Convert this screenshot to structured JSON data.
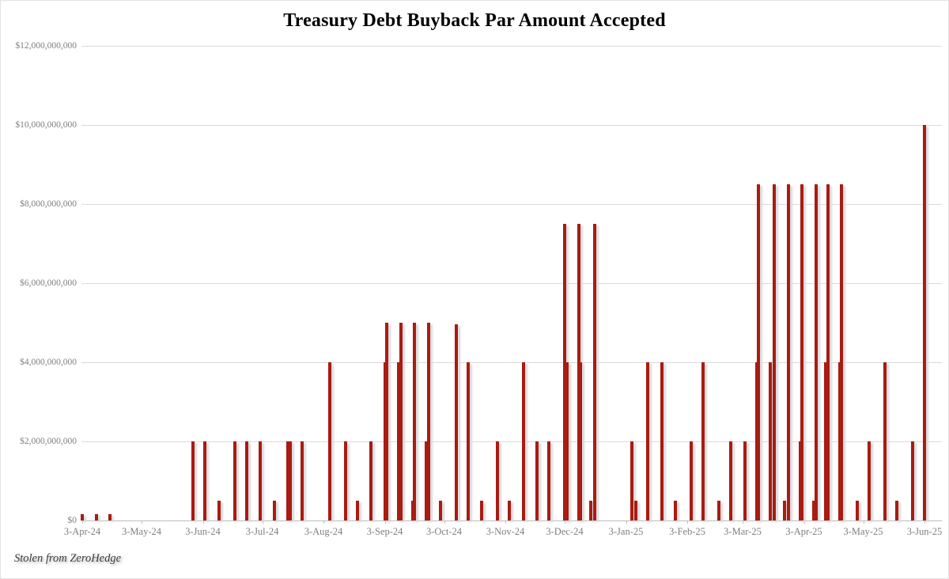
{
  "title": "Treasury Debt Buyback Par Amount Accepted",
  "watermark": "Stolen from ZeroHedge",
  "colors": {
    "bar": "#a81c12",
    "bar_shadow": "#d9d9dc",
    "gridline": "#dadada",
    "axis_line": "#bdbdbd",
    "axis_text": "#7f7f7f",
    "title_text": "#000000",
    "background": "#ffffff"
  },
  "chart_data": {
    "type": "bar",
    "title": "Treasury Debt Buyback Par Amount Accepted",
    "xlabel": "",
    "ylabel": "",
    "ylim": [
      0,
      12000000000
    ],
    "grid": "horizontal",
    "legend": "none",
    "y_ticks": [
      "$0",
      "$2,000,000,000",
      "$4,000,000,000",
      "$6,000,000,000",
      "$8,000,000,000",
      "$10,000,000,000",
      "$12,000,000,000"
    ],
    "x_ticks": [
      {
        "label": "3-Apr-24",
        "day": 0
      },
      {
        "label": "3-May-24",
        "day": 30
      },
      {
        "label": "3-Jun-24",
        "day": 61
      },
      {
        "label": "3-Jul-24",
        "day": 91
      },
      {
        "label": "3-Aug-24",
        "day": 122
      },
      {
        "label": "3-Sep-24",
        "day": 153
      },
      {
        "label": "3-Oct-24",
        "day": 183
      },
      {
        "label": "3-Nov-24",
        "day": 214
      },
      {
        "label": "3-Dec-24",
        "day": 244
      },
      {
        "label": "3-Jan-25",
        "day": 275
      },
      {
        "label": "3-Feb-25",
        "day": 306
      },
      {
        "label": "3-Mar-25",
        "day": 334
      },
      {
        "label": "3-Apr-25",
        "day": 365
      },
      {
        "label": "3-May-25",
        "day": 395
      },
      {
        "label": "3-Jun-25",
        "day": 426
      }
    ],
    "points": [
      {
        "date": "3-Apr-24",
        "day": 0,
        "value": 150000000
      },
      {
        "date": "10-Apr-24",
        "day": 7,
        "value": 150000000
      },
      {
        "date": "17-Apr-24",
        "day": 14,
        "value": 150000000
      },
      {
        "date": "29-May-24",
        "day": 56,
        "value": 2000000000
      },
      {
        "date": "4-Jun-24",
        "day": 62,
        "value": 2000000000
      },
      {
        "date": "11-Jun-24",
        "day": 69,
        "value": 500000000
      },
      {
        "date": "19-Jun-24",
        "day": 77,
        "value": 2000000000
      },
      {
        "date": "25-Jun-24",
        "day": 83,
        "value": 2000000000
      },
      {
        "date": "2-Jul-24",
        "day": 90,
        "value": 2000000000
      },
      {
        "date": "9-Jul-24",
        "day": 97,
        "value": 500000000
      },
      {
        "date": "16-Jul-24",
        "day": 104,
        "value": 2000000000
      },
      {
        "date": "17-Jul-24",
        "day": 105,
        "value": 2000000000
      },
      {
        "date": "23-Jul-24",
        "day": 111,
        "value": 2000000000
      },
      {
        "date": "6-Aug-24",
        "day": 125,
        "value": 4000000000
      },
      {
        "date": "14-Aug-24",
        "day": 133,
        "value": 2000000000
      },
      {
        "date": "20-Aug-24",
        "day": 139,
        "value": 500000000
      },
      {
        "date": "27-Aug-24",
        "day": 146,
        "value": 2000000000
      },
      {
        "date": "3-Sep-24",
        "day": 153,
        "value": 4000000000
      },
      {
        "date": "4-Sep-24",
        "day": 154,
        "value": 5000000000
      },
      {
        "date": "10-Sep-24",
        "day": 160,
        "value": 4000000000
      },
      {
        "date": "11-Sep-24",
        "day": 161,
        "value": 5000000000
      },
      {
        "date": "17-Sep-24",
        "day": 167,
        "value": 500000000
      },
      {
        "date": "18-Sep-24",
        "day": 168,
        "value": 5000000000
      },
      {
        "date": "24-Sep-24",
        "day": 174,
        "value": 2000000000
      },
      {
        "date": "25-Sep-24",
        "day": 175,
        "value": 5000000000
      },
      {
        "date": "1-Oct-24",
        "day": 181,
        "value": 500000000
      },
      {
        "date": "9-Oct-24",
        "day": 189,
        "value": 4950000000
      },
      {
        "date": "15-Oct-24",
        "day": 195,
        "value": 4000000000
      },
      {
        "date": "22-Oct-24",
        "day": 202,
        "value": 500000000
      },
      {
        "date": "30-Oct-24",
        "day": 210,
        "value": 2000000000
      },
      {
        "date": "5-Nov-24",
        "day": 216,
        "value": 500000000
      },
      {
        "date": "12-Nov-24",
        "day": 223,
        "value": 4000000000
      },
      {
        "date": "19-Nov-24",
        "day": 230,
        "value": 2000000000
      },
      {
        "date": "25-Nov-24",
        "day": 236,
        "value": 2000000000
      },
      {
        "date": "3-Dec-24",
        "day": 244,
        "value": 7500000000
      },
      {
        "date": "4-Dec-24",
        "day": 245,
        "value": 4000000000
      },
      {
        "date": "10-Dec-24",
        "day": 251,
        "value": 7500000000
      },
      {
        "date": "11-Dec-24",
        "day": 252,
        "value": 4000000000
      },
      {
        "date": "16-Dec-24",
        "day": 257,
        "value": 500000000
      },
      {
        "date": "18-Dec-24",
        "day": 259,
        "value": 7500000000
      },
      {
        "date": "6-Jan-25",
        "day": 278,
        "value": 2000000000
      },
      {
        "date": "8-Jan-25",
        "day": 280,
        "value": 500000000
      },
      {
        "date": "14-Jan-25",
        "day": 286,
        "value": 4000000000
      },
      {
        "date": "21-Jan-25",
        "day": 293,
        "value": 4000000000
      },
      {
        "date": "28-Jan-25",
        "day": 300,
        "value": 500000000
      },
      {
        "date": "5-Feb-25",
        "day": 308,
        "value": 2000000000
      },
      {
        "date": "11-Feb-25",
        "day": 314,
        "value": 4000000000
      },
      {
        "date": "19-Feb-25",
        "day": 322,
        "value": 500000000
      },
      {
        "date": "25-Feb-25",
        "day": 328,
        "value": 2000000000
      },
      {
        "date": "4-Mar-25",
        "day": 335,
        "value": 2000000000
      },
      {
        "date": "10-Mar-25",
        "day": 341,
        "value": 4000000000
      },
      {
        "date": "11-Mar-25",
        "day": 342,
        "value": 8500000000
      },
      {
        "date": "17-Mar-25",
        "day": 348,
        "value": 4000000000
      },
      {
        "date": "19-Mar-25",
        "day": 350,
        "value": 8500000000
      },
      {
        "date": "24-Mar-25",
        "day": 355,
        "value": 500000000
      },
      {
        "date": "26-Mar-25",
        "day": 357,
        "value": 8500000000
      },
      {
        "date": "1-Apr-25",
        "day": 363,
        "value": 2000000000
      },
      {
        "date": "2-Apr-25",
        "day": 364,
        "value": 8500000000
      },
      {
        "date": "8-Apr-25",
        "day": 370,
        "value": 500000000
      },
      {
        "date": "9-Apr-25",
        "day": 371,
        "value": 8500000000
      },
      {
        "date": "14-Apr-25",
        "day": 376,
        "value": 4000000000
      },
      {
        "date": "15-Apr-25",
        "day": 377,
        "value": 8500000000
      },
      {
        "date": "21-Apr-25",
        "day": 383,
        "value": 4000000000
      },
      {
        "date": "22-Apr-25",
        "day": 384,
        "value": 8500000000
      },
      {
        "date": "30-Apr-25",
        "day": 392,
        "value": 500000000
      },
      {
        "date": "6-May-25",
        "day": 398,
        "value": 2000000000
      },
      {
        "date": "14-May-25",
        "day": 406,
        "value": 4000000000
      },
      {
        "date": "20-May-25",
        "day": 412,
        "value": 500000000
      },
      {
        "date": "28-May-25",
        "day": 420,
        "value": 2000000000
      },
      {
        "date": "3-Jun-25",
        "day": 426,
        "value": 10000000000
      }
    ]
  }
}
